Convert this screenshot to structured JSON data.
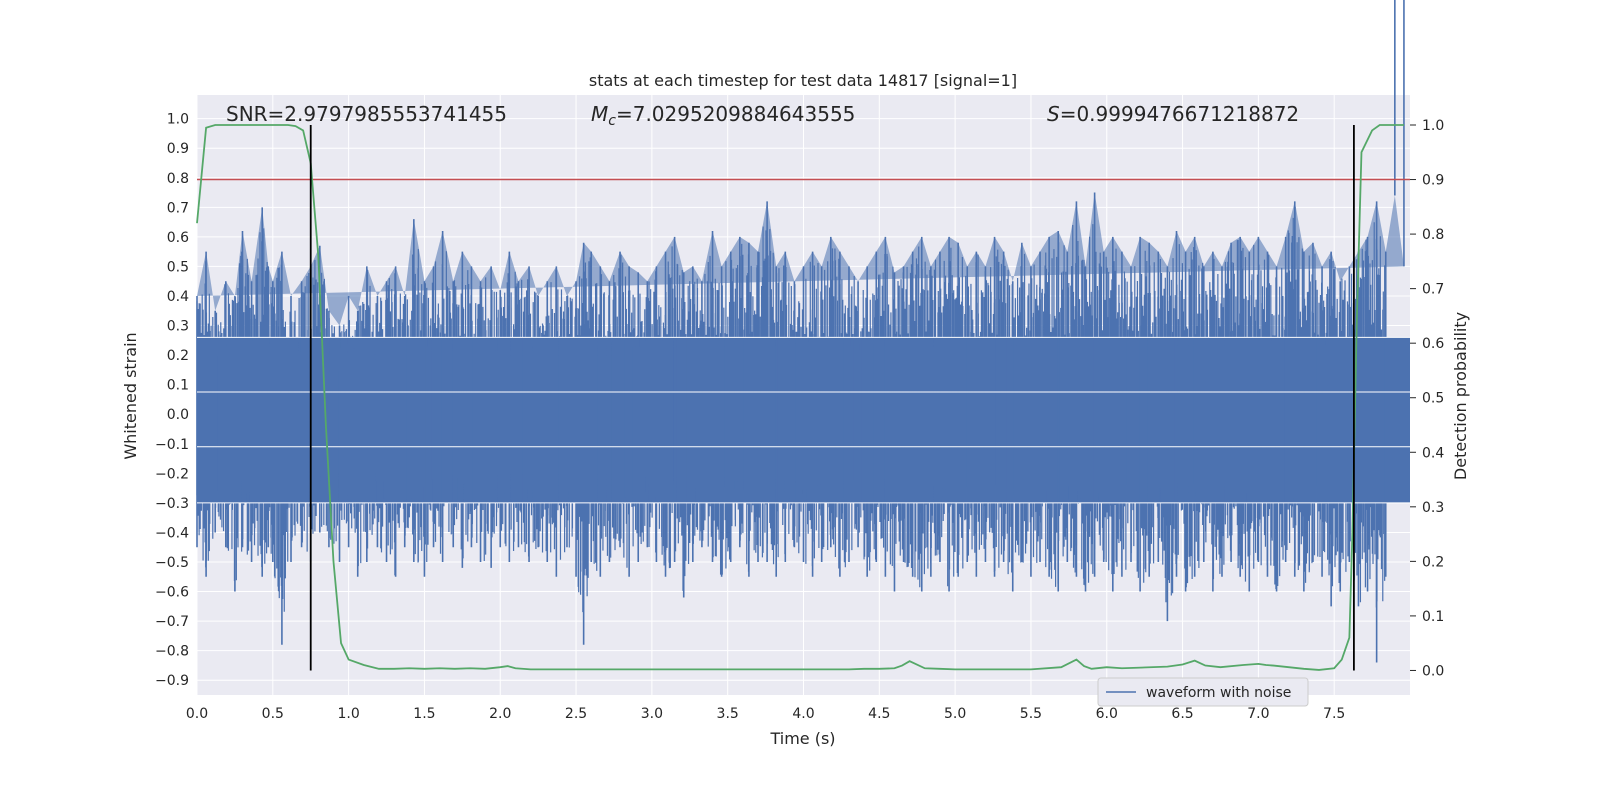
{
  "chart_data": {
    "type": "line",
    "title": "stats at each timestep for test data 14817 [signal=1]",
    "xlabel": "Time (s)",
    "ylabel": "Whitened strain",
    "y2label": "Detection probability",
    "xlim": [
      0.0,
      8.0
    ],
    "ylim": [
      -0.95,
      1.08
    ],
    "y2lim": [
      -0.045,
      1.055
    ],
    "x_ticks": [
      0.0,
      0.5,
      1.0,
      1.5,
      2.0,
      2.5,
      3.0,
      3.5,
      4.0,
      4.5,
      5.0,
      5.5,
      6.0,
      6.5,
      7.0,
      7.5
    ],
    "x_tick_labels": [
      "0.0",
      "0.5",
      "1.0",
      "1.5",
      "2.0",
      "2.5",
      "3.0",
      "3.5",
      "4.0",
      "4.5",
      "5.0",
      "5.5",
      "6.0",
      "6.5",
      "7.0",
      "7.5"
    ],
    "y_ticks": [
      1.0,
      0.9,
      0.8,
      0.7,
      0.6,
      0.5,
      0.4,
      0.3,
      0.2,
      0.1,
      0.0,
      -0.1,
      -0.2,
      -0.3,
      -0.4,
      -0.5,
      -0.6,
      -0.7,
      -0.8,
      -0.9
    ],
    "y_tick_labels": [
      "1.0",
      "0.9",
      "0.8",
      "0.7",
      "0.6",
      "0.5",
      "0.4",
      "0.3",
      "0.2",
      "0.1",
      "0.0",
      "−0.1",
      "−0.2",
      "−0.3",
      "−0.4",
      "−0.5",
      "−0.6",
      "−0.7",
      "−0.8",
      "−0.9"
    ],
    "y2_ticks": [
      1.0,
      0.9,
      0.8,
      0.7,
      0.6,
      0.5,
      0.4,
      0.3,
      0.2,
      0.1,
      0.0
    ],
    "y2_tick_labels": [
      "1.0",
      "0.9",
      "0.8",
      "0.7",
      "0.6",
      "0.5",
      "0.4",
      "0.3",
      "0.2",
      "0.1",
      "0.0"
    ],
    "grid": true,
    "legend": {
      "position": "lower-right",
      "entries": [
        "waveform with noise"
      ]
    },
    "annotations": {
      "snr": "SNR=2.9797985553741455",
      "mc_symbol": "M",
      "mc_sub": "c",
      "mc_value": "=7.0295209884643555",
      "s_symbol": "S",
      "s_value": "=0.9999476671218872"
    },
    "threshold": {
      "value": 0.9,
      "axis": "y2",
      "color": "#c44e52"
    },
    "vlines": [
      0.75,
      7.63
    ],
    "series": [
      {
        "name": "waveform with noise",
        "axis": "y",
        "color": "#4c72b0",
        "envelope": {
          "x": [
            0.0,
            0.06,
            0.12,
            0.19,
            0.25,
            0.3,
            0.36,
            0.43,
            0.47,
            0.5,
            0.56,
            0.62,
            0.69,
            0.75,
            0.81,
            0.87,
            0.94,
            1.0,
            1.06,
            1.12,
            1.19,
            1.25,
            1.31,
            1.37,
            1.43,
            1.5,
            1.56,
            1.62,
            1.69,
            1.75,
            1.81,
            1.87,
            1.94,
            2.0,
            2.06,
            2.12,
            2.19,
            2.25,
            2.31,
            2.37,
            2.44,
            2.5,
            2.55,
            2.6,
            2.66,
            2.72,
            2.79,
            2.85,
            2.91,
            2.97,
            3.03,
            3.09,
            3.15,
            3.21,
            3.27,
            3.33,
            3.4,
            3.46,
            3.52,
            3.58,
            3.64,
            3.7,
            3.76,
            3.82,
            3.88,
            3.94,
            4.0,
            4.06,
            4.12,
            4.18,
            4.24,
            4.3,
            4.36,
            4.42,
            4.48,
            4.54,
            4.6,
            4.66,
            4.72,
            4.78,
            4.84,
            4.9,
            4.96,
            5.02,
            5.08,
            5.14,
            5.2,
            5.26,
            5.32,
            5.38,
            5.44,
            5.5,
            5.56,
            5.62,
            5.68,
            5.74,
            5.8,
            5.86,
            5.92,
            5.98,
            6.04,
            6.1,
            6.16,
            6.22,
            6.28,
            6.34,
            6.4,
            6.46,
            6.52,
            6.58,
            6.64,
            6.7,
            6.76,
            6.82,
            6.88,
            6.94,
            7.0,
            7.06,
            7.12,
            7.18,
            7.24,
            7.3,
            7.36,
            7.42,
            7.48,
            7.54,
            7.6,
            7.66,
            7.72,
            7.78,
            7.84,
            7.9,
            7.96
          ],
          "max": [
            0.4,
            0.55,
            0.35,
            0.45,
            0.4,
            0.62,
            0.45,
            0.7,
            0.5,
            0.45,
            0.55,
            0.4,
            0.45,
            0.5,
            0.57,
            0.35,
            0.3,
            0.4,
            0.35,
            0.5,
            0.4,
            0.45,
            0.5,
            0.4,
            0.66,
            0.45,
            0.5,
            0.62,
            0.45,
            0.55,
            0.5,
            0.45,
            0.5,
            0.42,
            0.55,
            0.45,
            0.5,
            0.4,
            0.45,
            0.5,
            0.4,
            0.45,
            0.58,
            0.55,
            0.5,
            0.45,
            0.55,
            0.5,
            0.48,
            0.45,
            0.5,
            0.55,
            0.6,
            0.48,
            0.5,
            0.45,
            0.62,
            0.5,
            0.55,
            0.6,
            0.58,
            0.55,
            0.72,
            0.5,
            0.55,
            0.45,
            0.5,
            0.55,
            0.5,
            0.6,
            0.55,
            0.5,
            0.45,
            0.5,
            0.55,
            0.6,
            0.48,
            0.5,
            0.55,
            0.6,
            0.5,
            0.55,
            0.6,
            0.58,
            0.5,
            0.55,
            0.5,
            0.6,
            0.55,
            0.45,
            0.58,
            0.5,
            0.55,
            0.6,
            0.62,
            0.55,
            0.72,
            0.5,
            0.75,
            0.55,
            0.6,
            0.55,
            0.5,
            0.6,
            0.58,
            0.55,
            0.5,
            0.62,
            0.55,
            0.6,
            0.5,
            0.55,
            0.5,
            0.58,
            0.6,
            0.55,
            0.6,
            0.55,
            0.5,
            0.6,
            0.72,
            0.55,
            0.58,
            0.5,
            0.55,
            0.45,
            0.5,
            0.55,
            0.6,
            0.72,
            0.55,
            0.74,
            0.5
          ],
          "min": [
            -0.45,
            -0.55,
            -0.4,
            -0.45,
            -0.6,
            -0.45,
            -0.5,
            -0.55,
            -0.45,
            -0.5,
            -0.78,
            -0.5,
            -0.45,
            -0.5,
            -0.4,
            -0.45,
            -0.5,
            -0.45,
            -0.55,
            -0.5,
            -0.45,
            -0.5,
            -0.55,
            -0.45,
            -0.5,
            -0.55,
            -0.45,
            -0.5,
            -0.45,
            -0.52,
            -0.45,
            -0.5,
            -0.52,
            -0.45,
            -0.5,
            -0.45,
            -0.5,
            -0.45,
            -0.5,
            -0.55,
            -0.45,
            -0.55,
            -0.78,
            -0.5,
            -0.55,
            -0.5,
            -0.45,
            -0.55,
            -0.5,
            -0.45,
            -0.5,
            -0.55,
            -0.5,
            -0.62,
            -0.5,
            -0.45,
            -0.5,
            -0.55,
            -0.5,
            -0.45,
            -0.55,
            -0.5,
            -0.5,
            -0.55,
            -0.5,
            -0.45,
            -0.5,
            -0.55,
            -0.5,
            -0.45,
            -0.55,
            -0.5,
            -0.45,
            -0.55,
            -0.5,
            -0.55,
            -0.6,
            -0.5,
            -0.55,
            -0.6,
            -0.55,
            -0.5,
            -0.6,
            -0.55,
            -0.5,
            -0.55,
            -0.5,
            -0.55,
            -0.5,
            -0.6,
            -0.5,
            -0.55,
            -0.5,
            -0.55,
            -0.6,
            -0.5,
            -0.55,
            -0.6,
            -0.55,
            -0.5,
            -0.6,
            -0.55,
            -0.5,
            -0.6,
            -0.55,
            -0.5,
            -0.7,
            -0.55,
            -0.6,
            -0.55,
            -0.5,
            -0.6,
            -0.55,
            -0.5,
            -0.55,
            -0.6,
            -0.5,
            -0.55,
            -0.6,
            -0.5,
            -0.55,
            -0.6,
            -0.5,
            -0.55,
            -0.65,
            -0.6,
            -0.5,
            -0.65,
            -0.6,
            -0.84,
            -0.55
          ]
        }
      },
      {
        "name": "detection probability",
        "axis": "y2",
        "color": "#55a868",
        "x": [
          0.0,
          0.06,
          0.12,
          0.2,
          0.3,
          0.4,
          0.5,
          0.6,
          0.65,
          0.7,
          0.75,
          0.8,
          0.85,
          0.9,
          0.95,
          1.0,
          1.1,
          1.2,
          1.3,
          1.4,
          1.5,
          1.6,
          1.7,
          1.8,
          1.9,
          2.0,
          2.05,
          2.1,
          2.2,
          2.5,
          3.0,
          3.5,
          4.0,
          4.3,
          4.4,
          4.5,
          4.6,
          4.65,
          4.7,
          4.8,
          4.9,
          5.0,
          5.2,
          5.5,
          5.7,
          5.8,
          5.85,
          5.9,
          6.0,
          6.1,
          6.2,
          6.4,
          6.5,
          6.58,
          6.65,
          6.75,
          6.9,
          7.0,
          7.05,
          7.1,
          7.2,
          7.3,
          7.4,
          7.5,
          7.55,
          7.6,
          7.62,
          7.65,
          7.68,
          7.75,
          7.8,
          7.9,
          7.96
        ],
        "y": [
          0.82,
          0.995,
          1.0,
          1.0,
          1.0,
          1.0,
          1.0,
          1.0,
          0.998,
          0.99,
          0.93,
          0.76,
          0.45,
          0.2,
          0.05,
          0.02,
          0.01,
          0.003,
          0.003,
          0.004,
          0.003,
          0.004,
          0.003,
          0.004,
          0.003,
          0.006,
          0.008,
          0.004,
          0.002,
          0.002,
          0.002,
          0.002,
          0.002,
          0.002,
          0.003,
          0.003,
          0.004,
          0.009,
          0.017,
          0.004,
          0.003,
          0.002,
          0.002,
          0.002,
          0.006,
          0.02,
          0.008,
          0.003,
          0.006,
          0.004,
          0.005,
          0.007,
          0.011,
          0.018,
          0.009,
          0.006,
          0.01,
          0.012,
          0.01,
          0.009,
          0.006,
          0.003,
          0.001,
          0.004,
          0.02,
          0.06,
          0.25,
          0.65,
          0.95,
          0.99,
          1.0,
          1.0,
          1.0
        ]
      }
    ]
  }
}
